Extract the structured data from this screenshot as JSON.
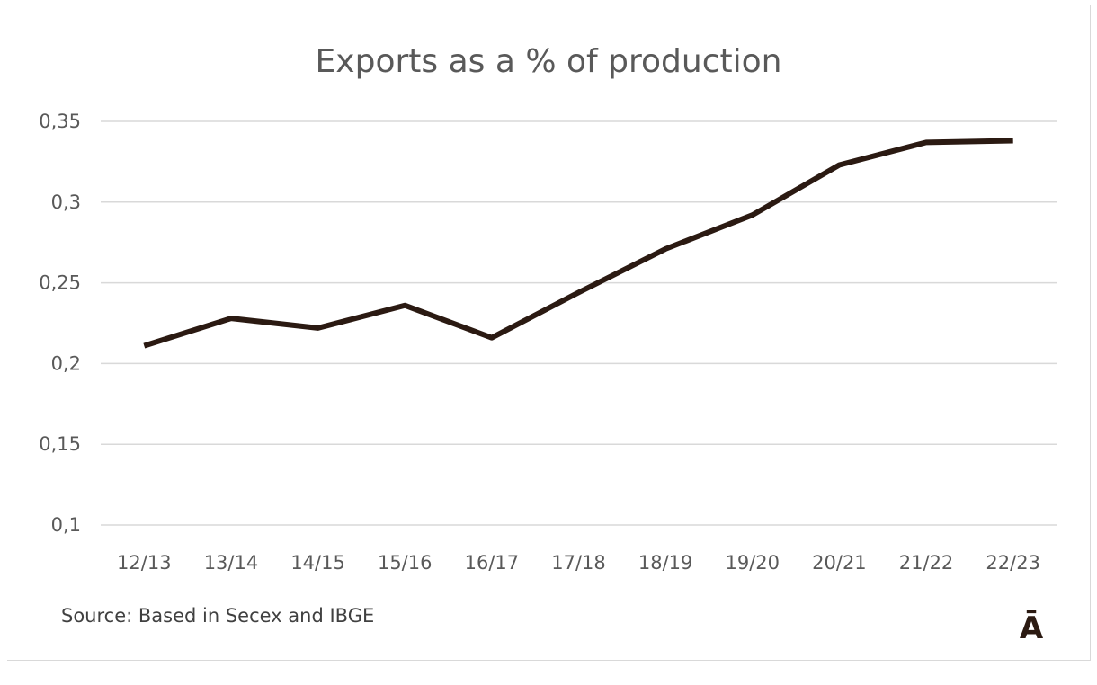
{
  "chart_data": {
    "type": "line",
    "title": "Exports as a % of production",
    "categories": [
      "12/13",
      "13/14",
      "14/15",
      "15/16",
      "16/17",
      "17/18",
      "18/19",
      "19/20",
      "20/21",
      "21/22",
      "22/23"
    ],
    "series": [
      {
        "values": [
          0.211,
          0.228,
          0.222,
          0.236,
          0.216,
          0.244,
          0.271,
          0.292,
          0.323,
          0.337,
          0.338
        ],
        "color": "#2b1a12"
      }
    ],
    "yticks": [
      0.1,
      0.15,
      0.2,
      0.25,
      0.3,
      0.35
    ],
    "ytick_labels": [
      "0,1",
      "0,15",
      "0,2",
      "0,25",
      "0,3",
      "0,35"
    ],
    "ylim": [
      0.1,
      0.35
    ],
    "grid": true,
    "legend": "none",
    "xlabel": "",
    "ylabel": ""
  },
  "source": "Source: Based in Secex and IBGE",
  "logo": "Ā"
}
